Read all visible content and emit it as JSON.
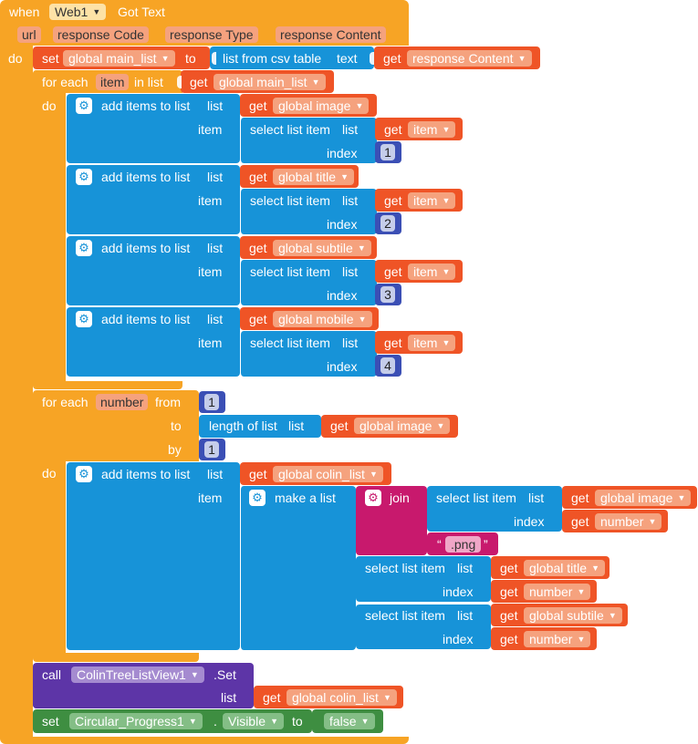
{
  "event": {
    "when": "when",
    "component": "Web1",
    "event_name": "Got Text",
    "params": [
      "url",
      "response Code",
      "response Type",
      "response Content"
    ],
    "do": "do"
  },
  "kw": {
    "set": "set",
    "to": "to",
    "get": "get",
    "do": "do",
    "for_each": "for each",
    "in_list": "in list",
    "from": "from",
    "by": "by",
    "add_items": "add items to list",
    "list": "list",
    "item": "item",
    "select_item": "select list item",
    "index": "index",
    "length_of_list": "length of list",
    "list_from_csv": "list from csv table",
    "text": "text",
    "make_a_list": "make a list",
    "join": "join",
    "call": "call",
    "set_method": ".Set",
    "dot": ".",
    "visible": "Visible",
    "false": "false",
    "quote_open": "“",
    "quote_close": "”"
  },
  "vars": {
    "main_list": "global main_list",
    "image": "global image",
    "title": "global title",
    "subtile": "global subtile",
    "mobile": "global mobile",
    "colin_list": "global colin_list",
    "item": "item",
    "number": "number",
    "response_content": "response Content"
  },
  "numbers": {
    "n1": "1",
    "n2": "2",
    "n3": "3",
    "n4": "4"
  },
  "strings": {
    "png": ".png"
  },
  "components": {
    "tree_view": "ColinTreeListView1",
    "progress": "Circular_Progress1"
  },
  "colors": {
    "event": "#f7a425",
    "list": "#1793d8",
    "variable": "#ef5426",
    "math": "#3b4fb5",
    "text": "#c8196d",
    "component": "#5d35a7",
    "style": "#3e8e41"
  },
  "icons": {
    "mutator": "gear-icon",
    "dropdown": "triangle-down-icon"
  }
}
